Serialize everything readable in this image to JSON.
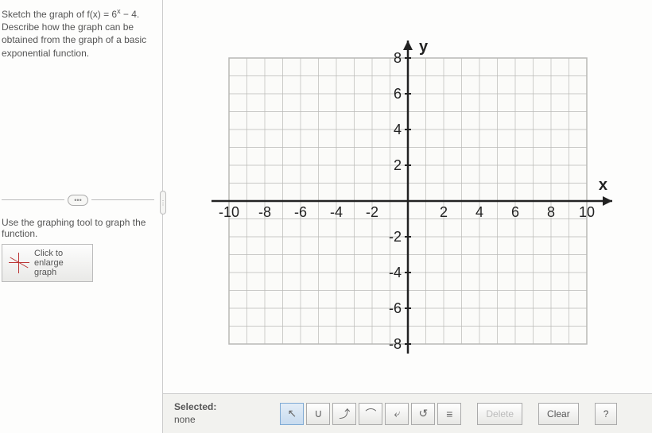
{
  "problem": {
    "line1_a": "Sketch the graph of f(x) = 6",
    "line1_exp": "x",
    "line1_b": " − 4.",
    "line2": "Describe how the graph can be obtained from the graph of a basic exponential function."
  },
  "divider_label": "•••",
  "instruction": "Use the graphing tool to graph the function.",
  "enlarge": {
    "l1": "Click to",
    "l2": "enlarge",
    "l3": "graph"
  },
  "graph": {
    "x_label": "x",
    "y_label": "y",
    "xmin": -10,
    "xmax": 10,
    "ymin": -8,
    "ymax": 8,
    "xtick_step": 2,
    "ytick_step": 2,
    "grid_color": "#b9b9b6",
    "axis_color": "#222222",
    "label_color": "#222222",
    "bg": "#fbfbf9",
    "label_fontsize": 18,
    "tick_fontsize": 18
  },
  "toolbar": {
    "selected_label": "Selected:",
    "selected_value": "none",
    "tools": [
      {
        "name": "pointer",
        "glyph": "↖"
      },
      {
        "name": "parabola",
        "glyph": "∪"
      },
      {
        "name": "curve1",
        "glyph": "⤴"
      },
      {
        "name": "arc",
        "glyph": "⌒"
      },
      {
        "name": "curve2",
        "glyph": "⤶"
      },
      {
        "name": "reset",
        "glyph": "↺"
      },
      {
        "name": "asymptote",
        "glyph": "≡"
      }
    ],
    "delete_label": "Delete",
    "clear_label": "Clear",
    "help_label": "?"
  }
}
